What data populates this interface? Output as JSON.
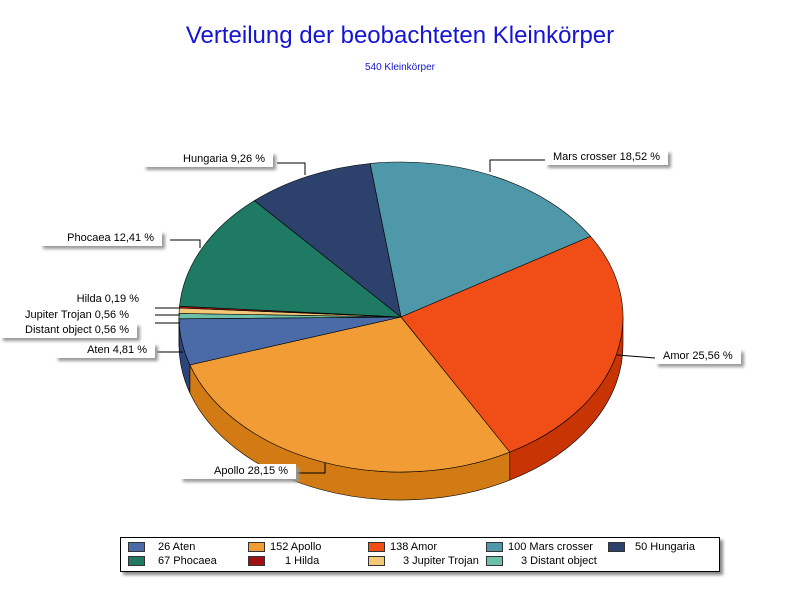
{
  "chart_data": {
    "type": "pie",
    "title": "Verteilung der beobachteten Kleinkörper",
    "subtitle": "540 Kleinkörper",
    "slices": [
      {
        "name": "Mars crosser",
        "count": 100,
        "percent_label": "Mars crosser 18,52 %",
        "legend": "100 Mars crosser",
        "color": "#4e98aa",
        "side": "#2f6c7c"
      },
      {
        "name": "Amor",
        "count": 138,
        "percent_label": "Amor 25,56 %",
        "legend": "138 Amor",
        "color": "#f04e16",
        "side": "#c83404"
      },
      {
        "name": "Apollo",
        "count": 152,
        "percent_label": "Apollo 28,15 %",
        "legend": "152 Apollo",
        "color": "#f29c35",
        "side": "#d27a14"
      },
      {
        "name": "Aten",
        "count": 26,
        "percent_label": "Aten 4,81 %",
        "legend": "26 Aten",
        "color": "#4a6aa8",
        "side": "#2c467c"
      },
      {
        "name": "Distant object",
        "count": 3,
        "percent_label": "Distant object 0,56 %",
        "legend": "3 Distant object",
        "color": "#6cbfa8",
        "side": "#4a9a84"
      },
      {
        "name": "Jupiter Trojan",
        "count": 3,
        "percent_label": "Jupiter Trojan 0,56 %",
        "legend": "3 Jupiter Trojan",
        "color": "#f5c878",
        "side": "#d2a450"
      },
      {
        "name": "Hilda",
        "count": 1,
        "percent_label": "Hilda 0,19 %",
        "legend": "1 Hilda",
        "color": "#a01010",
        "side": "#780808"
      },
      {
        "name": "Phocaea",
        "count": 67,
        "percent_label": "Phocaea 12,41 %",
        "legend": "67 Phocaea",
        "color": "#1e7a62",
        "side": "#125a46"
      },
      {
        "name": "Hungaria",
        "count": 50,
        "percent_label": "Hungaria 9,26 %",
        "legend": "50 Hungaria",
        "color": "#2c416c",
        "side": "#1a2a4c"
      }
    ],
    "legend_placement": "bottom"
  }
}
